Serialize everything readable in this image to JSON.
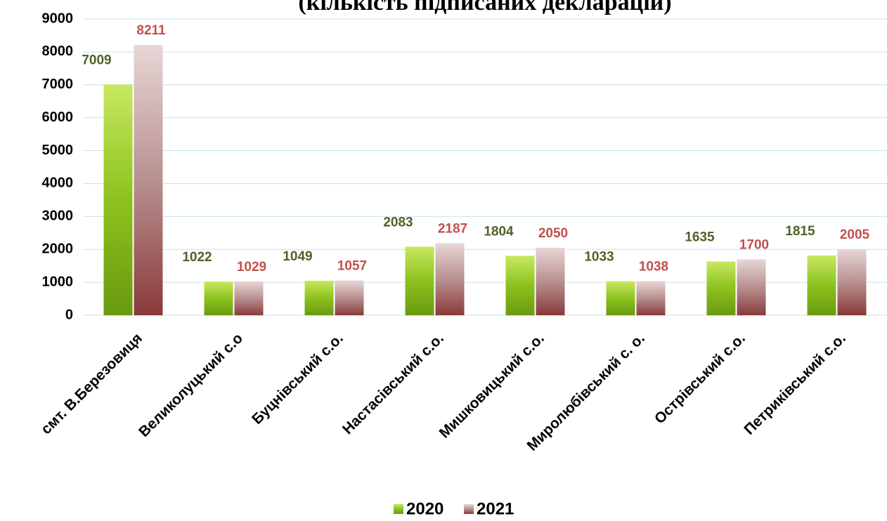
{
  "chart_data": {
    "type": "bar",
    "title": "(кількість підписаних декларацій)",
    "categories": [
      "смт. В.Березовиця",
      "Великолуцький с.о",
      "Буцнівський с.о.",
      "Настасівський с.о.",
      "Мишковицький с.о.",
      "Миролюбівський с. о.",
      "Острівський с.о.",
      "Петриківський с.о."
    ],
    "series": [
      {
        "name": "2020",
        "color": "#8cc21e",
        "label_color": "#4f6228",
        "values": [
          7009,
          1022,
          1049,
          2083,
          1804,
          1033,
          1635,
          1815
        ]
      },
      {
        "name": "2021",
        "color": "#8a3a3a",
        "label_color": "#c0504d",
        "values": [
          8211,
          1029,
          1057,
          2187,
          2050,
          1038,
          1700,
          2005
        ]
      }
    ],
    "ylim": [
      0,
      9000
    ],
    "yticks": [
      0,
      1000,
      2000,
      3000,
      4000,
      5000,
      6000,
      7000,
      8000,
      9000
    ],
    "grid": true,
    "legend": "bottom"
  }
}
